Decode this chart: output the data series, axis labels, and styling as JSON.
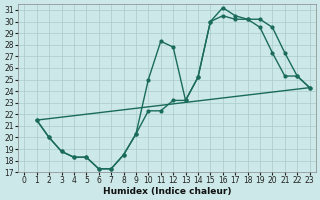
{
  "xlabel": "Humidex (Indice chaleur)",
  "xlim": [
    -0.5,
    23.5
  ],
  "ylim": [
    17,
    31.5
  ],
  "yticks": [
    17,
    18,
    19,
    20,
    21,
    22,
    23,
    24,
    25,
    26,
    27,
    28,
    29,
    30,
    31
  ],
  "xticks": [
    0,
    1,
    2,
    3,
    4,
    5,
    6,
    7,
    8,
    9,
    10,
    11,
    12,
    13,
    14,
    15,
    16,
    17,
    18,
    19,
    20,
    21,
    22,
    23
  ],
  "bg_color": "#cde8e8",
  "grid_color": "#aacccc",
  "line_color": "#1a6b5a",
  "line1_x": [
    1,
    2,
    3,
    4,
    5,
    6,
    7,
    8,
    9,
    10,
    11,
    12,
    13,
    14,
    15,
    16,
    17,
    18,
    19,
    20,
    21,
    22,
    23
  ],
  "line1_y": [
    21.5,
    20.0,
    18.8,
    18.3,
    18.3,
    17.3,
    17.3,
    18.5,
    20.3,
    25.0,
    28.3,
    27.8,
    23.2,
    25.2,
    30.0,
    31.2,
    30.5,
    30.2,
    30.2,
    29.5,
    27.3,
    25.3,
    24.3
  ],
  "line2_x": [
    1,
    2,
    3,
    4,
    5,
    6,
    7,
    8,
    9,
    10,
    11,
    12,
    13,
    14,
    15,
    16,
    17,
    18,
    19,
    20,
    21,
    22,
    23
  ],
  "line2_y": [
    21.5,
    20.0,
    18.8,
    18.3,
    18.3,
    17.3,
    17.3,
    18.5,
    20.3,
    22.3,
    22.3,
    23.2,
    23.2,
    25.2,
    30.0,
    30.5,
    30.2,
    30.2,
    29.5,
    27.3,
    25.3,
    25.3,
    24.3
  ],
  "line3_x": [
    1,
    23
  ],
  "line3_y": [
    21.5,
    24.3
  ],
  "marker_size": 2.0,
  "linewidth": 1.0,
  "tick_fontsize": 5.5,
  "label_fontsize": 6.5
}
